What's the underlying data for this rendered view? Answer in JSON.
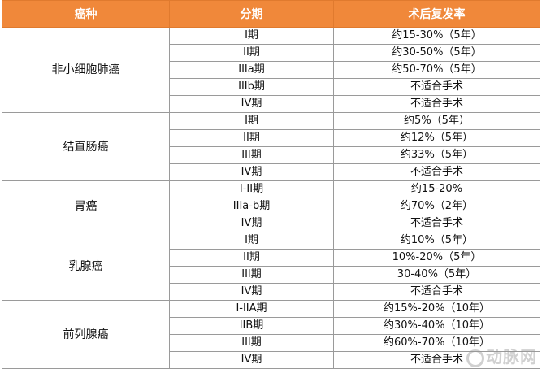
{
  "header": {
    "cancer_type": "癌种",
    "stage": "分期",
    "recurrence": "术后复发率"
  },
  "groups": [
    {
      "cancer": "非小细胞肺癌",
      "rows": [
        {
          "stage": "I期",
          "rate": "约15-30%（5年）"
        },
        {
          "stage": "II期",
          "rate": "约30-50%（5年）"
        },
        {
          "stage": "IIIa期",
          "rate": "约50-70%（5年）"
        },
        {
          "stage": "IIIb期",
          "rate": "不适合手术"
        },
        {
          "stage": "IV期",
          "rate": "不适合手术"
        }
      ]
    },
    {
      "cancer": "结直肠癌",
      "rows": [
        {
          "stage": "I期",
          "rate": "约5%（5年）"
        },
        {
          "stage": "II期",
          "rate": "约12%（5年）"
        },
        {
          "stage": "III期",
          "rate": "约33%（5年）"
        },
        {
          "stage": "IV期",
          "rate": "不适合手术"
        }
      ]
    },
    {
      "cancer": "胃癌",
      "rows": [
        {
          "stage": "I-II期",
          "rate": "约15-20%"
        },
        {
          "stage": "IIIa-b期",
          "rate": "约70%（2年）"
        },
        {
          "stage": "IV期",
          "rate": "不适合手术"
        }
      ]
    },
    {
      "cancer": "乳腺癌",
      "rows": [
        {
          "stage": "I期",
          "rate": "约10%（5年）"
        },
        {
          "stage": "II期",
          "rate": "10%-20%（5年）"
        },
        {
          "stage": "III期",
          "rate": "30-40%（5年）"
        },
        {
          "stage": "IV期",
          "rate": "不适合手术"
        }
      ]
    },
    {
      "cancer": "前列腺癌",
      "rows": [
        {
          "stage": "I-IIA期",
          "rate": "约15%-20%（10年）"
        },
        {
          "stage": "IIB期",
          "rate": "约30%-40%（10年）"
        },
        {
          "stage": "III期",
          "rate": "约60%-70%（10年）"
        },
        {
          "stage": "IV期",
          "rate": "不适合手术"
        }
      ]
    }
  ],
  "watermark": "动脉网"
}
